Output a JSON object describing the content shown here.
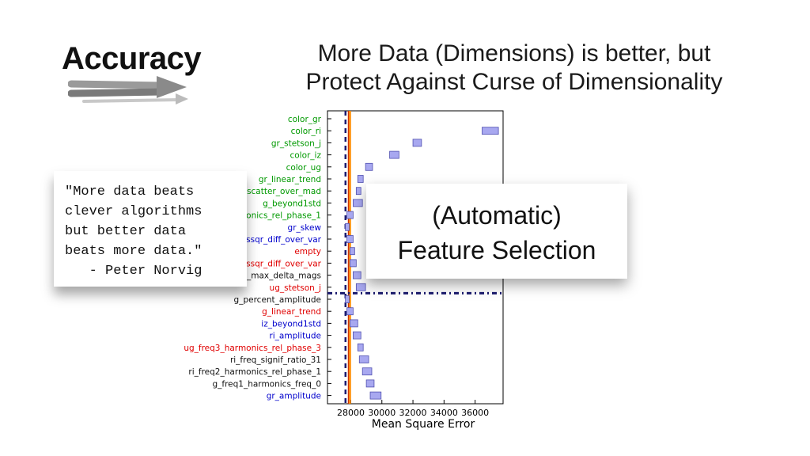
{
  "slide": {
    "heading": "Accuracy",
    "subtitle_lines": [
      "More Data (Dimensions) is better, but",
      "Protect Against Curse of Dimensionality"
    ],
    "quote_lines": [
      "\"More data beats",
      "clever algorithms",
      "but better data",
      "beats more data.\"",
      "   - Peter Norvig"
    ],
    "callout_lines": [
      "(Automatic)",
      "Feature Selection"
    ]
  },
  "colors": {
    "green": "#009900",
    "red": "#e00000",
    "blue": "#0000cc",
    "black": "#111111",
    "bar_fill": "#a8a8f0",
    "bar_stroke": "#5050b0",
    "vline_orange": "#ff8c00",
    "vline_red": "#cc3300",
    "dash_navy": "#1a1a6e"
  },
  "chart_data": {
    "type": "bar",
    "orientation": "horizontal",
    "xlabel": "Mean Square Error",
    "xlim": [
      26500,
      37800
    ],
    "xticks": [
      "28000",
      "30000",
      "32000",
      "34000",
      "36000"
    ],
    "categories": [
      {
        "name": "color_gr",
        "color": "green",
        "low": null,
        "high": null
      },
      {
        "name": "color_ri",
        "color": "green",
        "low": 36450,
        "high": 37500
      },
      {
        "name": "gr_stetson_j",
        "color": "green",
        "low": 32000,
        "high": 32550
      },
      {
        "name": "color_iz",
        "color": "green",
        "low": 30500,
        "high": 31100
      },
      {
        "name": "color_ug",
        "color": "green",
        "low": 28950,
        "high": 29400
      },
      {
        "name": "gr_linear_trend",
        "color": "green",
        "low": 28450,
        "high": 28800
      },
      {
        "name": "scatter_over_mad",
        "color": "green",
        "low": 28350,
        "high": 28650
      },
      {
        "name": "g_beyond1std",
        "color": "green",
        "low": 28150,
        "high": 28750
      },
      {
        "name": "onics_rel_phase_1",
        "color": "green",
        "low": 27750,
        "high": 28150
      },
      {
        "name": "gr_skew",
        "color": "blue",
        "low": 27650,
        "high": 27900
      },
      {
        "name": "ssqr_diff_over_var",
        "color": "blue",
        "low": 27750,
        "high": 28150
      },
      {
        "name": "empty",
        "color": "red",
        "low": 27950,
        "high": 28250
      },
      {
        "name": "ssqr_diff_over_var",
        "color": "red",
        "low": 27950,
        "high": 28350
      },
      {
        "name": "_max_delta_mags",
        "color": "black",
        "low": 28150,
        "high": 28650
      },
      {
        "name": "ug_stetson_j",
        "color": "red",
        "low": 28350,
        "high": 28950
      },
      {
        "name": "g_percent_amplitude",
        "color": "black",
        "low": 27650,
        "high": 27900
      },
      {
        "name": "g_linear_trend",
        "color": "red",
        "low": 27750,
        "high": 28150
      },
      {
        "name": "iz_beyond1std",
        "color": "blue",
        "low": 27950,
        "high": 28450
      },
      {
        "name": "ri_amplitude",
        "color": "blue",
        "low": 28150,
        "high": 28650
      },
      {
        "name": "ug_freq3_harmonics_rel_phase_3",
        "color": "red",
        "low": 28450,
        "high": 28800
      },
      {
        "name": "ri_freq_signif_ratio_31",
        "color": "black",
        "low": 28550,
        "high": 29150
      },
      {
        "name": "ri_freq2_harmonics_rel_phase_1",
        "color": "black",
        "low": 28750,
        "high": 29350
      },
      {
        "name": "g_freq1_harmonics_freq_0",
        "color": "black",
        "low": 29000,
        "high": 29500
      },
      {
        "name": "gr_amplitude",
        "color": "blue",
        "low": 29250,
        "high": 29950
      }
    ],
    "reference_lines": {
      "vertical_orange": 27950,
      "vertical_red": 27850,
      "vertical_dashed": 27660,
      "horizontal_dashed_after_index": 14
    }
  }
}
